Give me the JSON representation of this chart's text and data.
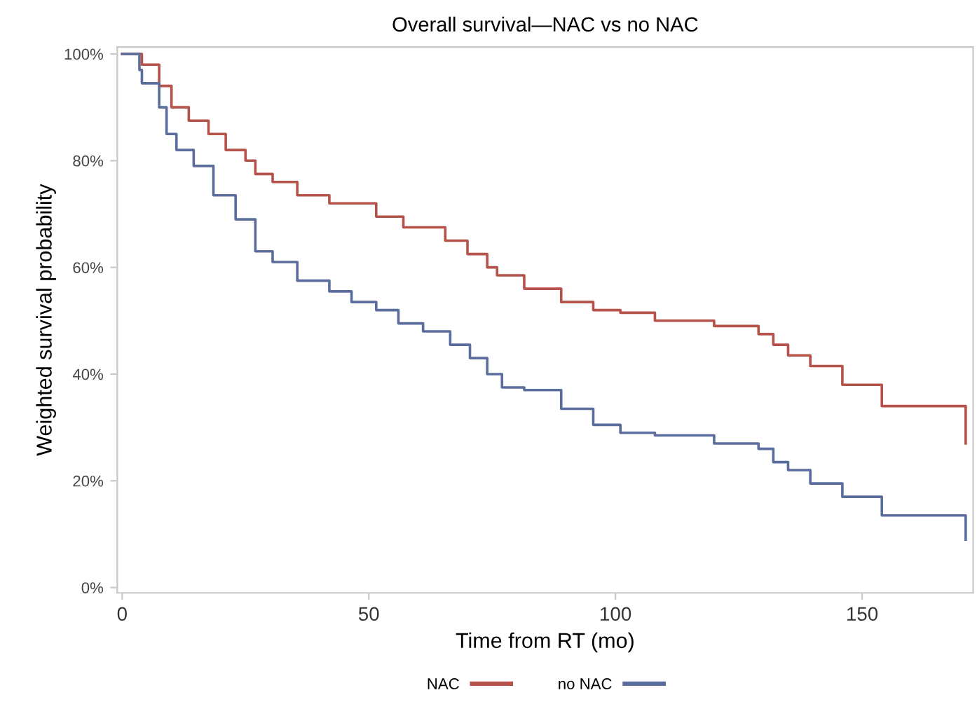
{
  "chart_data": {
    "type": "step",
    "title": "Overall survival—NAC vs no NAC",
    "xlabel": "Time from RT (mo)",
    "ylabel": "Weighted survival probability",
    "xlim": [
      -1,
      172.5
    ],
    "xticks": [
      0,
      50,
      100,
      150
    ],
    "ylim": [
      -1,
      101.3
    ],
    "yticks": [
      {
        "value": 0,
        "label": "0%"
      },
      {
        "value": 20,
        "label": "20%"
      },
      {
        "value": 40,
        "label": "40%"
      },
      {
        "value": 60,
        "label": "60%"
      },
      {
        "value": 80,
        "label": "80%"
      },
      {
        "value": 100,
        "label": "100%"
      }
    ],
    "grid": false,
    "legend": "bottom",
    "line_style": "solid",
    "series": [
      {
        "name": "NAC",
        "color": "#b5534a",
        "x": [
          0,
          4,
          7.5,
          10,
          13.5,
          17.5,
          21,
          25,
          27,
          30.5,
          35.5,
          42,
          51.5,
          57,
          65.5,
          70,
          74,
          76,
          81.5,
          89,
          95.5,
          101,
          108,
          120,
          129,
          132,
          135,
          139.5,
          146,
          154,
          171,
          171
        ],
        "values": [
          100,
          98,
          94,
          90,
          87.5,
          85,
          82,
          80,
          77.5,
          76,
          73.5,
          72,
          69.5,
          67.5,
          65,
          62.5,
          60,
          58.5,
          56,
          53.5,
          52,
          51.5,
          50,
          49,
          47.5,
          45.5,
          43.5,
          41.5,
          38,
          34,
          34,
          27
        ]
      },
      {
        "name": "no NAC",
        "color": "#5a6d9c",
        "x": [
          0,
          3.5,
          4,
          7.5,
          9,
          11,
          14.5,
          18.5,
          23,
          27,
          30.5,
          35.5,
          42,
          46.5,
          51.5,
          56,
          61,
          66.5,
          70.5,
          74,
          77,
          81.5,
          89,
          95.5,
          101,
          108,
          120,
          129,
          132,
          135,
          139.5,
          146,
          154,
          171,
          171
        ],
        "values": [
          100,
          97,
          94.5,
          90,
          85,
          82,
          79,
          73.5,
          69,
          63,
          61,
          57.5,
          55.5,
          53.5,
          52,
          49.5,
          48,
          45.5,
          43,
          40,
          37.5,
          37,
          33.5,
          30.5,
          29,
          28.5,
          27,
          26,
          23.5,
          22,
          19.5,
          17,
          13.5,
          13.5,
          9
        ]
      }
    ]
  }
}
